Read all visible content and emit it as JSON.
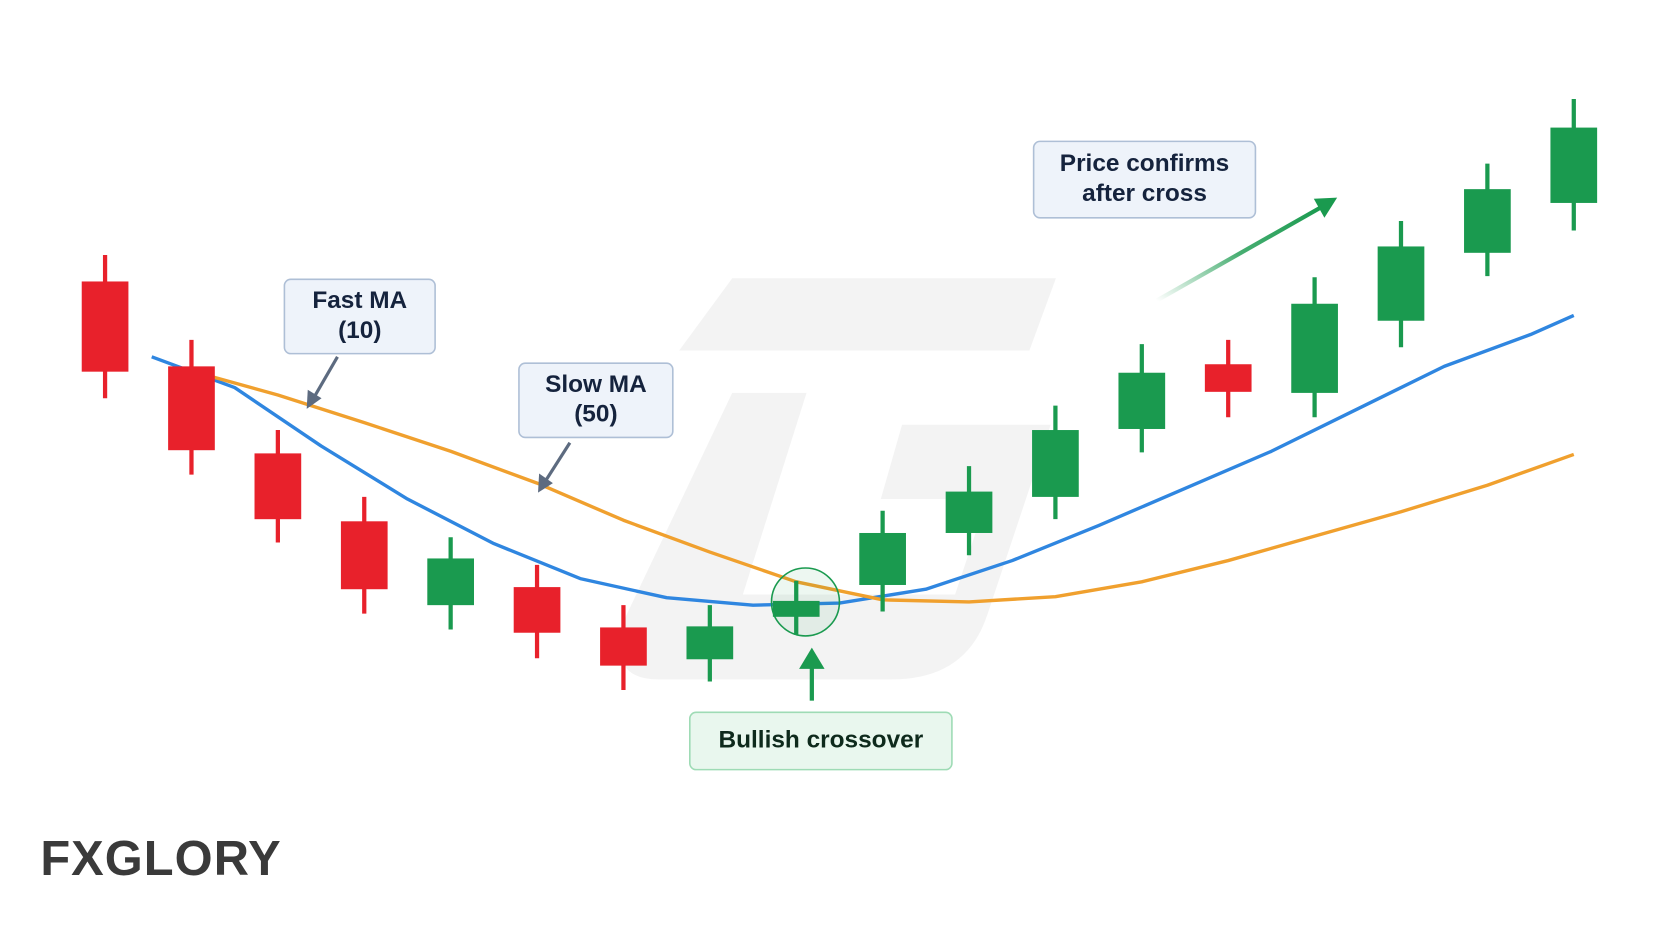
{
  "chart_data": {
    "type": "candlestick",
    "x": [
      1,
      2,
      3,
      4,
      5,
      6,
      7,
      8,
      9,
      10,
      11,
      12,
      13,
      14,
      15,
      16,
      17,
      18
    ],
    "open": [
      103.75,
      83.75,
      63.25,
      47.25,
      27.5,
      31.75,
      22.25,
      14.75,
      24.75,
      32.25,
      44.5,
      53,
      69,
      84.25,
      77.5,
      94.5,
      110.5,
      122.25
    ],
    "high": [
      110,
      90,
      68.75,
      53,
      43.5,
      37,
      27.5,
      27.5,
      33.25,
      49.75,
      60.25,
      74.5,
      89,
      90,
      104.75,
      118,
      131.5,
      146.75
    ],
    "low": [
      76.25,
      58.25,
      42.25,
      25.5,
      21.75,
      15,
      7.5,
      9.5,
      20.5,
      26,
      39.25,
      47.75,
      63.5,
      71.75,
      71.75,
      88.25,
      105,
      115.75
    ],
    "close": [
      82.5,
      64,
      47.75,
      31.25,
      38.5,
      21,
      13.25,
      22.5,
      28.5,
      44.5,
      54.25,
      68.75,
      82.25,
      77.75,
      98.5,
      112,
      125.5,
      140
    ],
    "up_color": "#1a9a4f",
    "down_color": "#e8212b",
    "lines": [
      {
        "color": "#2f86e0",
        "x": [
          1.54,
          2.5,
          3.5,
          4.5,
          5.5,
          6.5,
          7.5,
          8.5,
          9.5,
          10.5,
          11.5,
          12.5,
          13.5,
          14.5,
          15.5,
          16.5,
          17.5,
          18
        ],
        "values": [
          86,
          78.75,
          65,
          52.5,
          42,
          33.75,
          29.25,
          27.5,
          28,
          31.25,
          38,
          46.25,
          55,
          63.75,
          73.75,
          83.75,
          91.25,
          95.75
        ]
      },
      {
        "color": "#f0a02e",
        "x": [
          2.25,
          3,
          4,
          5,
          6,
          7,
          8,
          9,
          10,
          11,
          12,
          13,
          14,
          15,
          16,
          17,
          18
        ],
        "values": [
          81.25,
          77,
          70.5,
          63.75,
          56.25,
          47.5,
          40,
          33,
          28.75,
          28.25,
          29.5,
          33,
          38,
          43.75,
          49.5,
          55.75,
          63
        ]
      }
    ],
    "xlim": [
      0,
      19
    ],
    "ylim": [
      0,
      160
    ],
    "annotations": [
      {
        "lines": [
          "Fast MA",
          "(10)"
        ]
      },
      {
        "lines": [
          "Slow MA",
          "(50)"
        ]
      },
      {
        "lines": [
          "Bullish crossover"
        ]
      },
      {
        "lines": [
          "Price confirms",
          "after cross"
        ]
      }
    ]
  },
  "logo": "FXGLORY"
}
